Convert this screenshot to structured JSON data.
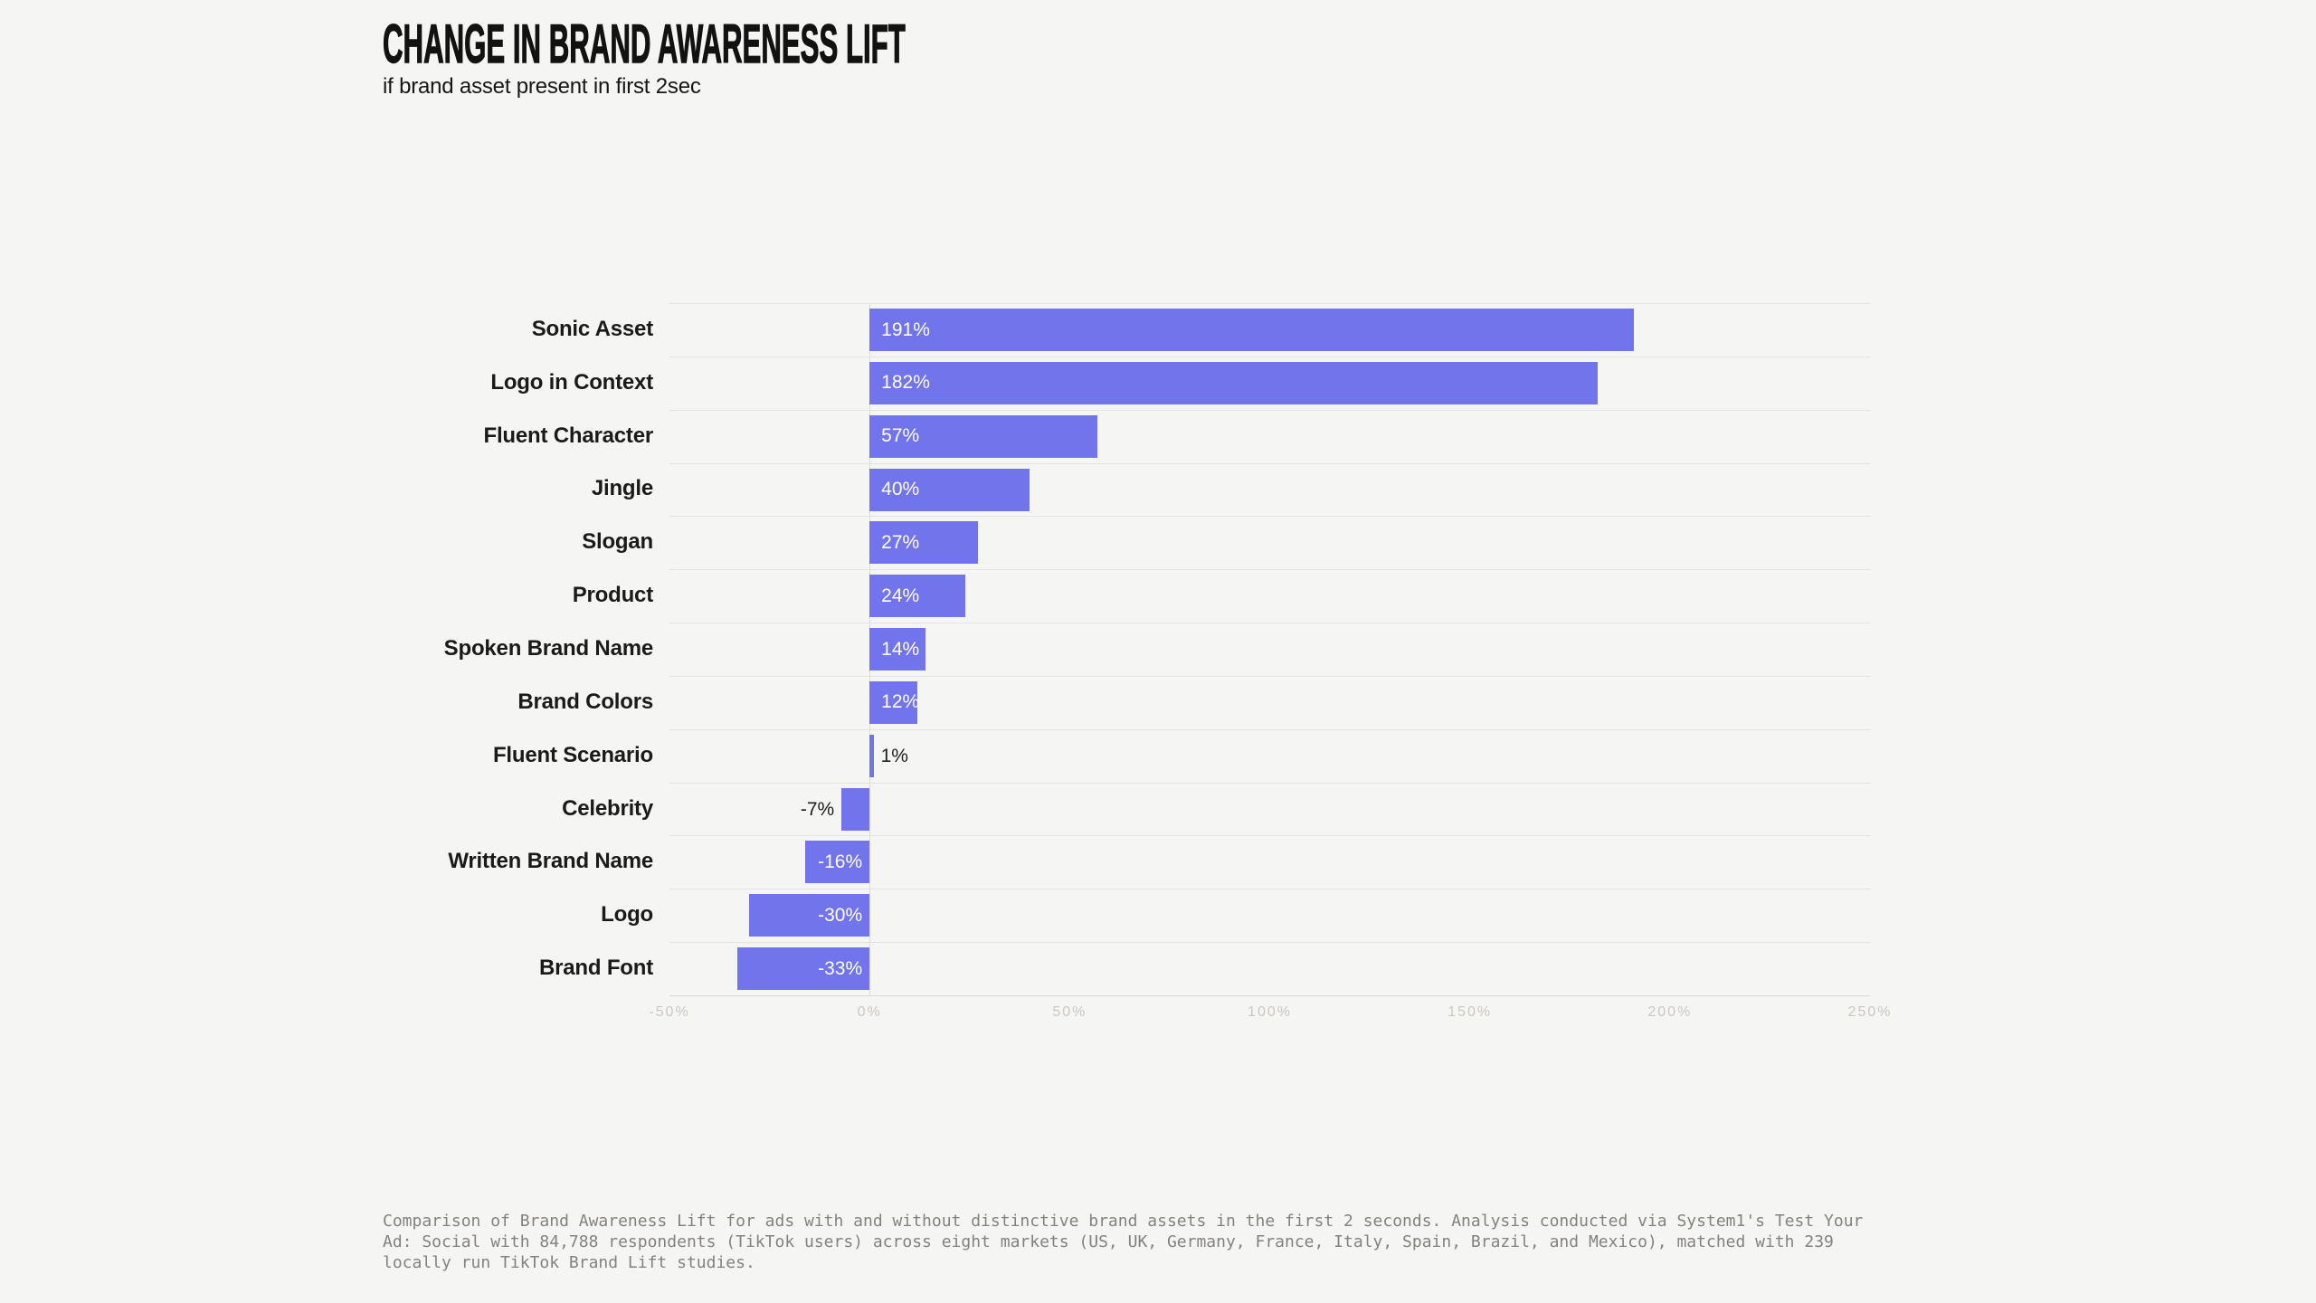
{
  "page": {
    "background_color": "#F5F5F3"
  },
  "header": {
    "title": "CHANGE IN BRAND AWARENESS LIFT",
    "subtitle": "if brand asset present in first 2sec"
  },
  "chart_data": {
    "type": "bar",
    "orientation": "horizontal",
    "title": "CHANGE IN BRAND AWARENESS LIFT",
    "subtitle": "if brand asset present in first 2sec",
    "categories": [
      "Sonic Asset",
      "Logo in Context",
      "Fluent Character",
      "Jingle",
      "Slogan",
      "Product",
      "Spoken Brand Name",
      "Brand Colors",
      "Fluent Scenario",
      "Celebrity",
      "Written Brand Name",
      "Logo",
      "Brand Font"
    ],
    "values": [
      191,
      182,
      57,
      40,
      27,
      24,
      14,
      12,
      1,
      -7,
      -16,
      -30,
      -33
    ],
    "value_labels": [
      "191%",
      "182%",
      "57%",
      "40%",
      "27%",
      "24%",
      "14%",
      "12%",
      "1%",
      "-7%",
      "-16%",
      "-30%",
      "-33%"
    ],
    "xlim": [
      -50,
      250
    ],
    "x_tick_values": [
      -50,
      0,
      50,
      100,
      150,
      200,
      250
    ],
    "x_ticks": [
      "-50%",
      "0%",
      "50%",
      "100%",
      "150%",
      "200%",
      "250%"
    ],
    "xlabel": "",
    "ylabel": "",
    "bar_color": "#7274EC",
    "grid": "row-separators-horizontal",
    "legend": "none"
  },
  "colors": {
    "bar": "#7274EC",
    "background": "#F5F5F3",
    "separator": "#E2E2DF",
    "tick_label": "#CBC8C1",
    "value_label_inside": "#FFFFFF",
    "value_label_outside": "#202020",
    "text_primary": "#121212",
    "footer_text": "#84827E"
  },
  "footer": {
    "caption": "Comparison of Brand Awareness Lift for ads with and without distinctive brand assets in the first 2 seconds. Analysis conducted via System1's Test Your Ad: Social with 84,788 respondents (TikTok users) across eight markets (US, UK, Germany, France, Italy, Spain, Brazil, and Mexico), matched with 239 locally run TikTok Brand Lift studies."
  }
}
